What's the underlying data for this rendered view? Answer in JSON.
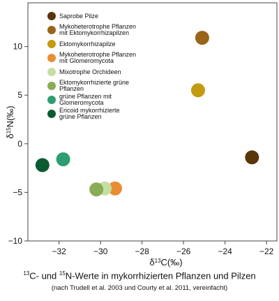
{
  "chart_data": {
    "type": "scatter",
    "xlabel": {
      "prefix": "δ",
      "sup": "13",
      "main": "C(‰)"
    },
    "ylabel": {
      "prefix": "δ",
      "sup": "15",
      "main": "N(‰)"
    },
    "xlim": [
      -33.5,
      -21.5
    ],
    "ylim": [
      -10,
      14.5
    ],
    "xticks": [
      -32,
      -30,
      -28,
      -26,
      -24,
      -22
    ],
    "yticks": [
      -10,
      -5,
      0,
      5,
      10
    ],
    "grid": false,
    "legend_position": "top-left",
    "series": [
      {
        "name": "Saprobe Pilze",
        "color": "#5a3508",
        "points": [
          {
            "x": -22.7,
            "y": -1.4
          }
        ]
      },
      {
        "name": "Mykoheterotrophe Pflanzen mit Ektomykorrhizapilzen",
        "color": "#9a6419",
        "points": [
          {
            "x": -25.1,
            "y": 10.9
          }
        ]
      },
      {
        "name": "Ektomykorrhizapilze",
        "color": "#c49a10",
        "points": [
          {
            "x": -25.3,
            "y": 5.5
          }
        ]
      },
      {
        "name": "Mykoheterotrophe Pflanzen mit Glomeromycota",
        "color": "#e88d34",
        "points": [
          {
            "x": -29.3,
            "y": -4.6
          }
        ]
      },
      {
        "name": "Mixotrophe Orchideen",
        "color": "#c5dfa3",
        "points": [
          {
            "x": -29.8,
            "y": -4.6
          }
        ]
      },
      {
        "name": "Ektomykorrhizierte grüne Pflanzen",
        "color": "#8aac56",
        "points": [
          {
            "x": -30.2,
            "y": -4.7
          }
        ]
      },
      {
        "name": "grüne Pflanzen mit Glomeromycota",
        "color": "#2e9e72",
        "points": [
          {
            "x": -31.8,
            "y": -1.6
          }
        ]
      },
      {
        "name": "Ericoid mykorrhizierte grüne Pflanzen",
        "color": "#0c5a32",
        "points": [
          {
            "x": -32.8,
            "y": -2.2
          }
        ]
      }
    ]
  },
  "caption": {
    "title": {
      "sup1": "13",
      "part1": "C- und ",
      "sup2": "15",
      "part2": "N-Werte in mykorrhizierten Pflanzen und Pilzen"
    },
    "subtitle": "(nach Trudell et al. 2003 und Courty et al. 2011, vereinfacht)"
  }
}
